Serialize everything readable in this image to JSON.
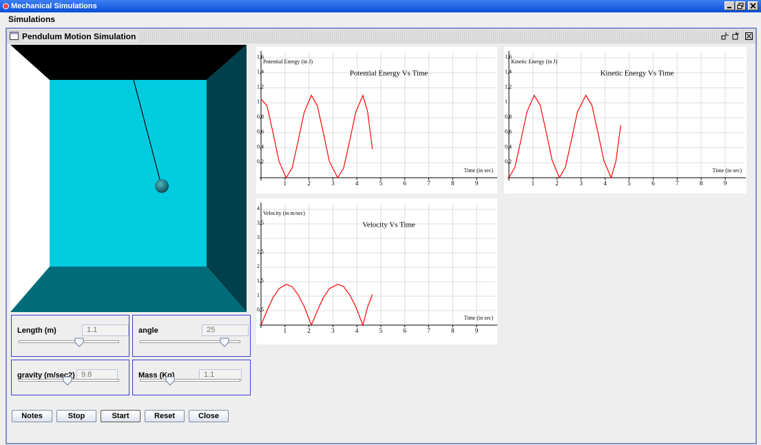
{
  "window": {
    "title": "Mechanical Simulations"
  },
  "menu": [
    "Simulations"
  ],
  "frame": {
    "title": "Pendulum Motion Simulation"
  },
  "controls": [
    {
      "label": "Length (m)",
      "value": 1.1
    },
    {
      "label": "angle",
      "value": 25
    },
    {
      "label": "gravity (m/sec2)",
      "value": 9.8
    },
    {
      "label": "Mass (Kg)",
      "value": 1.1
    }
  ],
  "buttons": [
    "Notes",
    "Stop",
    "Start",
    "Reset",
    "Close"
  ],
  "chart_data": [
    {
      "type": "line",
      "title": "Potential Energy Vs Time",
      "y_label": "Potential Energy (in J)",
      "x_label": "Time (in sec)",
      "x": [
        0,
        0.25,
        0.5,
        0.75,
        1.05,
        1.3,
        1.55,
        1.8,
        2.1,
        2.35,
        2.6,
        2.85,
        3.2,
        3.45,
        3.7,
        3.95,
        4.25,
        4.45,
        4.65
      ],
      "values": [
        1.05,
        0.96,
        0.6,
        0.22,
        0,
        0.13,
        0.49,
        0.87,
        1.1,
        0.96,
        0.6,
        0.22,
        0,
        0.13,
        0.49,
        0.87,
        1.1,
        0.88,
        0.38
      ],
      "color": "#ff0000",
      "xlim": [
        0,
        9.8
      ],
      "xticks": [
        1,
        2,
        3,
        4,
        5,
        6,
        7,
        8,
        9
      ],
      "ylim": [
        0,
        1.6
      ],
      "yticks": [
        {
          "value": 0.2,
          "label": "0,2"
        },
        {
          "value": 0.4,
          "label": "0,4"
        },
        {
          "value": 0.6,
          "label": "0,6"
        },
        {
          "value": 0.8,
          "label": "0,8"
        },
        1,
        {
          "value": 1.2,
          "label": "1,2"
        },
        {
          "value": 1.4,
          "label": "1,4"
        },
        {
          "value": 1.6,
          "label": "1,6"
        }
      ],
      "grid": true
    },
    {
      "type": "line",
      "title": "Kinetic Energy Vs Time",
      "y_label": "Kinetic Energy (in J)",
      "x_label": "Time (in sec)",
      "x": [
        0,
        0.25,
        0.5,
        0.75,
        1.05,
        1.3,
        1.55,
        1.8,
        2.1,
        2.35,
        2.6,
        2.85,
        3.2,
        3.45,
        3.7,
        3.95,
        4.25,
        4.45,
        4.65
      ],
      "values": [
        0,
        0.14,
        0.5,
        0.88,
        1.1,
        0.97,
        0.61,
        0.23,
        0,
        0.14,
        0.5,
        0.88,
        1.1,
        0.97,
        0.61,
        0.23,
        0,
        0.22,
        0.7
      ],
      "color": "#ff0000",
      "xlim": [
        0,
        9.8
      ],
      "xticks": [
        1,
        2,
        3,
        4,
        5,
        6,
        7,
        8,
        9
      ],
      "ylim": [
        0,
        1.6
      ],
      "yticks": [
        {
          "value": 0.2,
          "label": "0,2"
        },
        {
          "value": 0.4,
          "label": "0,4"
        },
        {
          "value": 0.6,
          "label": "0,6"
        },
        {
          "value": 0.8,
          "label": "0,8"
        },
        1,
        {
          "value": 1.2,
          "label": "1,2"
        },
        {
          "value": 1.4,
          "label": "1,4"
        },
        {
          "value": 1.6,
          "label": "1,6"
        }
      ],
      "grid": true
    },
    {
      "type": "line",
      "title": "Velocity Vs Time",
      "y_label": "Velocity (in m/sec)",
      "x_label": "Time (in sec)",
      "x": [
        0,
        0.25,
        0.5,
        0.75,
        1.05,
        1.3,
        1.55,
        1.8,
        2.1,
        2.35,
        2.6,
        2.85,
        3.2,
        3.45,
        3.7,
        3.95,
        4.25,
        4.45,
        4.65
      ],
      "values": [
        0,
        0.5,
        0.95,
        1.26,
        1.41,
        1.33,
        1.05,
        0.65,
        0,
        0.5,
        0.95,
        1.26,
        1.41,
        1.33,
        1.05,
        0.65,
        0,
        0.63,
        1.06
      ],
      "color": "#ff0000",
      "xlim": [
        0,
        9.8
      ],
      "xticks": [
        1,
        2,
        3,
        4,
        5,
        6,
        7,
        8,
        9
      ],
      "ylim": [
        0,
        4
      ],
      "yticks": [
        {
          "value": 0.5,
          "label": "0,5"
        },
        1,
        {
          "value": 1.5,
          "label": "1,5"
        },
        2,
        {
          "value": 2.5,
          "label": "2,5"
        },
        3,
        {
          "value": 3.5,
          "label": "3,5"
        },
        4
      ],
      "grid": true
    }
  ]
}
